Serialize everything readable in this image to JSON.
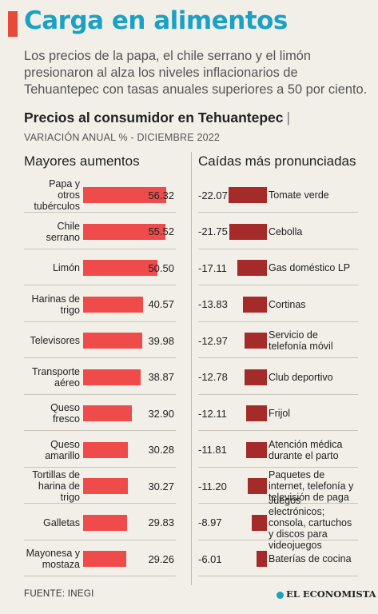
{
  "header": {
    "title": "Carga en alimentos",
    "lede": "Los precios de la papa, el chile serrano y el limón presionaron al alza los niveles inflacionarios de Tehuantepec con tasas anuales superiores a 50 por ciento.",
    "subtitle": "Precios al consumidor en Tehuantepec",
    "subtitle_sep": "|",
    "meta": "VARIACIÓN ANUAL % - DICIEMBRE 2022"
  },
  "colors": {
    "accent": "#e84a3a",
    "title": "#1aa1c4",
    "increase_bar": "#ee4b4a",
    "decrease_bar": "#a52a2a"
  },
  "chart_data": [
    {
      "type": "bar",
      "title": "Mayores aumentos",
      "categories": [
        "Papa y otros tubérculos",
        "Chile serrano",
        "Limón",
        "Harinas de trigo",
        "Televisores",
        "Transporte aéreo",
        "Queso fresco",
        "Queso amarillo",
        "Tortillas de harina de trigo",
        "Galletas",
        "Mayonesa y mostaza"
      ],
      "values": [
        56.32,
        55.52,
        50.5,
        40.57,
        39.98,
        38.87,
        32.9,
        30.28,
        30.27,
        29.83,
        29.26
      ],
      "labels": [
        "56.32",
        "55.52",
        "50.50",
        "40.57",
        "39.98",
        "38.87",
        "32.90",
        "30.28",
        "30.27",
        "29.83",
        "29.26"
      ]
    },
    {
      "type": "bar",
      "title": "Caídas más pronunciadas",
      "categories": [
        "Tomate verde",
        "Cebolla",
        "Gas doméstico LP",
        "Cortinas",
        "Servicio de telefonía móvil",
        "Club deportivo",
        "Frijol",
        "Atención médica durante el parto",
        "Paquetes de internet, telefonía y televisión de paga",
        "Juegos electrónicos; consola, cartuchos y discos para videojuegos",
        "Baterías de cocina"
      ],
      "values": [
        -22.07,
        -21.75,
        -17.11,
        -13.83,
        -12.97,
        -12.78,
        -12.11,
        -11.81,
        -11.2,
        -8.97,
        -6.01
      ],
      "labels": [
        "-22.07",
        "-21.75",
        "-17.11",
        "-13.83",
        "-12.97",
        "-12.78",
        "-12.11",
        "-11.81",
        "-11.20",
        "-8.97",
        "-6.01"
      ]
    }
  ],
  "footer": {
    "source": "FUENTE: INEGI",
    "brand": "EL ECONOMISTA"
  }
}
